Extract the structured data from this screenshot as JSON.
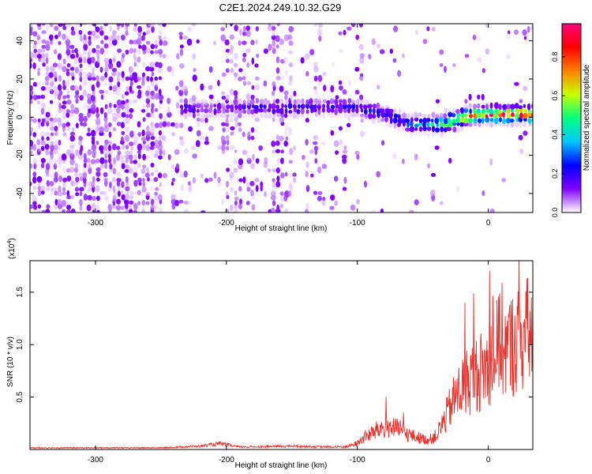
{
  "title": "C2E1.2024.249.10.32.G29",
  "chart_data": [
    {
      "type": "heatmap",
      "xlabel": "Height of straight line (km)",
      "ylabel": "Frequency (Hz)",
      "xlim": [
        -350,
        34
      ],
      "ylim": [
        -50,
        49
      ],
      "xticks": [
        -300,
        -200,
        -100,
        0
      ],
      "yticks": [
        -40,
        -20,
        0,
        20,
        40
      ],
      "colorbar": {
        "label": "Normalized spectral amplitude",
        "range": [
          0,
          0.97
        ],
        "ticks": [
          0.0,
          0.2,
          0.4,
          0.6,
          0.8
        ],
        "colormap": [
          "#ffffff",
          "#8000ff",
          "#0000ff",
          "#00c8ff",
          "#00ff80",
          "#c8ff00",
          "#ff8000",
          "#ff0000",
          "#ff0080"
        ]
      },
      "ridge": {
        "height_km": [
          -230,
          -200,
          -180,
          -160,
          -130,
          -110,
          -90,
          -75,
          -60,
          -45,
          -35,
          -25,
          -15,
          -5,
          5,
          15,
          25,
          34
        ],
        "frequency_hz": [
          4,
          4,
          5,
          4,
          5,
          5,
          3,
          0,
          -4,
          -4,
          -4,
          -2,
          0,
          1,
          1,
          1,
          1,
          1
        ],
        "peak_amplitude": [
          0.2,
          0.12,
          0.2,
          0.2,
          0.22,
          0.22,
          0.25,
          0.25,
          0.3,
          0.45,
          0.55,
          0.7,
          0.85,
          0.85,
          0.9,
          0.9,
          0.9,
          0.9
        ]
      }
    },
    {
      "type": "line",
      "xlabel": "Height of straight line (km)",
      "ylabel": "SNR (10 * v/v)",
      "y_scale_label": "(x10",
      "y_scale_exponent": "4",
      "y_scale_suffix": ")",
      "xlim": [
        -350,
        34
      ],
      "ylim": [
        0,
        1.8
      ],
      "xticks": [
        -300,
        -200,
        -100,
        0
      ],
      "yticks": [
        0.5,
        1.0,
        1.5
      ],
      "ytick_labels": [
        "0.5",
        "1.0",
        "1.5"
      ],
      "series": [
        {
          "color": "#e8312a",
          "envelope_x": [
            -350,
            -300,
            -250,
            -220,
            -205,
            -190,
            -150,
            -120,
            -108,
            -100,
            -95,
            -88,
            -82,
            -76,
            -70,
            -64,
            -58,
            -52,
            -46,
            -40,
            -36,
            -32,
            -28,
            -24,
            -20,
            -16,
            -12,
            -8,
            -4,
            0,
            4,
            8,
            10,
            12,
            16,
            20,
            24,
            28,
            34
          ],
          "envelope_y": [
            0.02,
            0.02,
            0.02,
            0.04,
            0.07,
            0.03,
            0.04,
            0.03,
            0.04,
            0.08,
            0.16,
            0.22,
            0.28,
            0.3,
            0.27,
            0.22,
            0.18,
            0.15,
            0.12,
            0.18,
            0.3,
            0.45,
            0.6,
            0.72,
            0.82,
            0.9,
            0.95,
            1.0,
            1.05,
            1.1,
            1.25,
            1.35,
            1.5,
            1.3,
            1.35,
            1.4,
            1.45,
            1.5,
            1.55
          ]
        }
      ]
    }
  ]
}
